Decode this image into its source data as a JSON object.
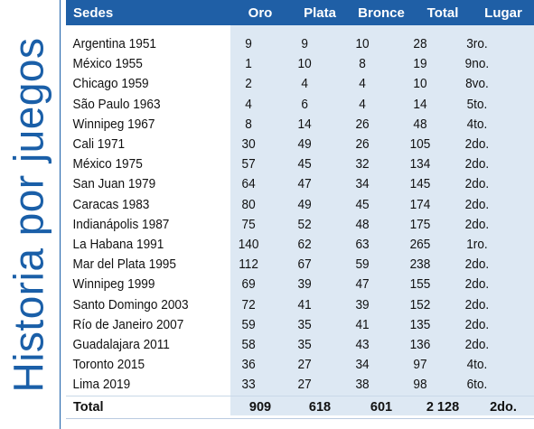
{
  "side_title": "Historia por juegos",
  "headers": {
    "sede": "Sedes",
    "oro": "Oro",
    "plata": "Plata",
    "bronce": "Bronce",
    "total": "Total",
    "lugar": "Lugar"
  },
  "rows": [
    {
      "sede": "Argentina 1951",
      "oro": "9",
      "plata": "9",
      "bronce": "10",
      "total": "28",
      "lugar": "3ro."
    },
    {
      "sede": "México 1955",
      "oro": "1",
      "plata": "10",
      "bronce": "8",
      "total": "19",
      "lugar": "9no."
    },
    {
      "sede": "Chicago 1959",
      "oro": "2",
      "plata": "4",
      "bronce": "4",
      "total": "10",
      "lugar": "8vo."
    },
    {
      "sede": "São Paulo 1963",
      "oro": "4",
      "plata": "6",
      "bronce": "4",
      "total": "14",
      "lugar": "5to."
    },
    {
      "sede": "Winnipeg 1967",
      "oro": "8",
      "plata": "14",
      "bronce": "26",
      "total": "48",
      "lugar": "4to."
    },
    {
      "sede": "Cali 1971",
      "oro": "30",
      "plata": "49",
      "bronce": "26",
      "total": "105",
      "lugar": "2do."
    },
    {
      "sede": "México 1975",
      "oro": "57",
      "plata": "45",
      "bronce": "32",
      "total": "134",
      "lugar": "2do."
    },
    {
      "sede": "San Juan 1979",
      "oro": "64",
      "plata": "47",
      "bronce": "34",
      "total": "145",
      "lugar": "2do."
    },
    {
      "sede": "Caracas 1983",
      "oro": "80",
      "plata": "49",
      "bronce": "45",
      "total": "174",
      "lugar": "2do."
    },
    {
      "sede": "Indianápolis 1987",
      "oro": "75",
      "plata": "52",
      "bronce": "48",
      "total": "175",
      "lugar": "2do."
    },
    {
      "sede": "La Habana 1991",
      "oro": "140",
      "plata": "62",
      "bronce": "63",
      "total": "265",
      "lugar": "1ro."
    },
    {
      "sede": "Mar del Plata 1995",
      "oro": "112",
      "plata": "67",
      "bronce": "59",
      "total": "238",
      "lugar": "2do."
    },
    {
      "sede": "Winnipeg 1999",
      "oro": "69",
      "plata": "39",
      "bronce": "47",
      "total": "155",
      "lugar": "2do."
    },
    {
      "sede": "Santo Domingo 2003",
      "oro": "72",
      "plata": "41",
      "bronce": "39",
      "total": "152",
      "lugar": "2do."
    },
    {
      "sede": "Río de Janeiro 2007",
      "oro": "59",
      "plata": "35",
      "bronce": "41",
      "total": "135",
      "lugar": "2do."
    },
    {
      "sede": "Guadalajara 2011",
      "oro": "58",
      "plata": "35",
      "bronce": "43",
      "total": "136",
      "lugar": "2do."
    },
    {
      "sede": "Toronto 2015",
      "oro": "36",
      "plata": "27",
      "bronce": "34",
      "total": "97",
      "lugar": "4to."
    },
    {
      "sede": "Lima 2019",
      "oro": "33",
      "plata": "27",
      "bronce": "38",
      "total": "98",
      "lugar": "6to."
    }
  ],
  "total_row": {
    "sede": "Total",
    "oro": "909",
    "plata": "618",
    "bronce": "601",
    "total": "2 128",
    "lugar": "2do."
  },
  "colors": {
    "accent": "#1f5fa6",
    "band": "#dde8f3",
    "title": "#1a5fa8"
  }
}
